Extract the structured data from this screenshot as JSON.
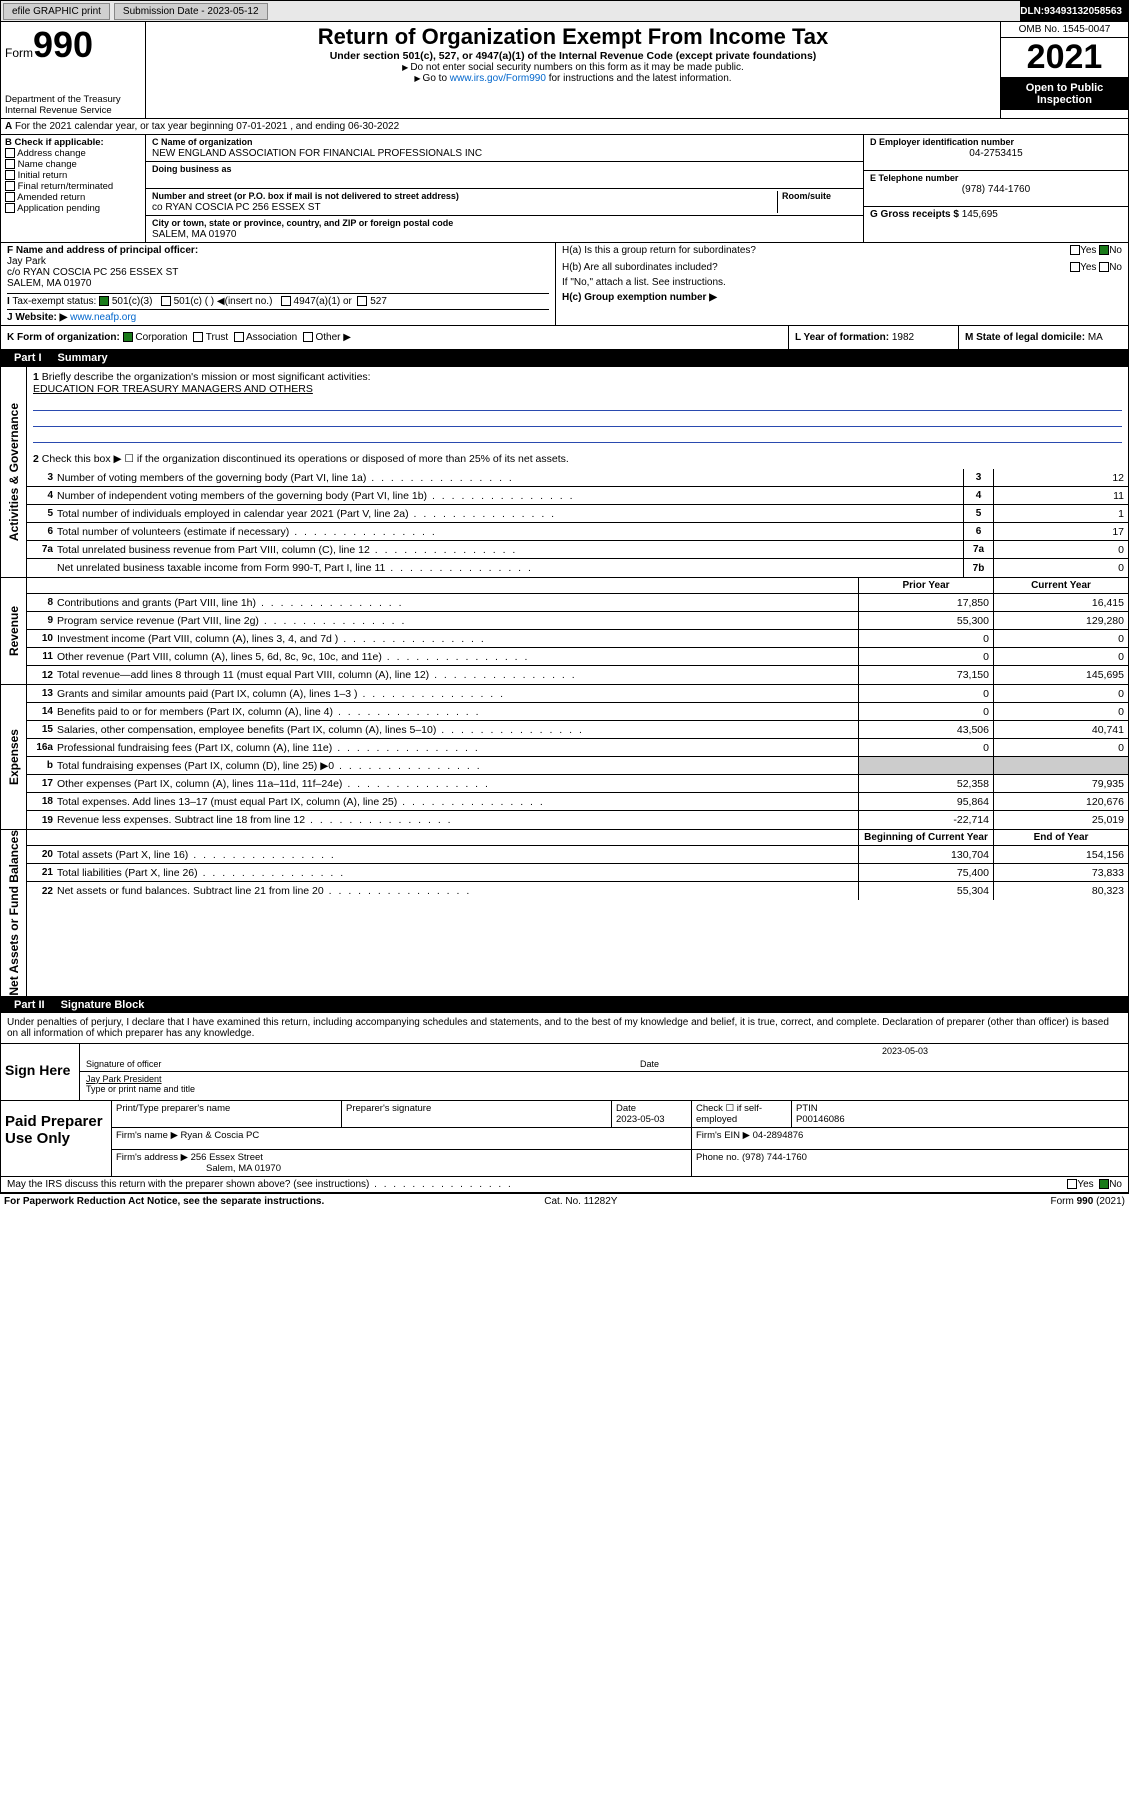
{
  "topbar": {
    "efile": "efile GRAPHIC print",
    "subdate_lbl": "Submission Date - ",
    "subdate": "2023-05-12",
    "dln_lbl": "DLN: ",
    "dln": "93493132058563"
  },
  "header": {
    "form_lbl": "Form",
    "form_no": "990",
    "title": "Return of Organization Exempt From Income Tax",
    "subtitle": "Under section 501(c), 527, or 4947(a)(1) of the Internal Revenue Code (except private foundations)",
    "instr1": "Do not enter social security numbers on this form as it may be made public.",
    "instr2_pre": "Go to ",
    "instr2_link": "www.irs.gov/Form990",
    "instr2_post": " for instructions and the latest information.",
    "dept": "Department of the Treasury",
    "irs": "Internal Revenue Service",
    "omb": "OMB No. 1545-0047",
    "year": "2021",
    "open": "Open to Public Inspection"
  },
  "rowA": "For the 2021 calendar year, or tax year beginning 07-01-2021 , and ending 06-30-2022",
  "rowA_lbl": "A",
  "secB": {
    "hdr": "B Check if applicable:",
    "opts": [
      "Address change",
      "Name change",
      "Initial return",
      "Final return/terminated",
      "Amended return",
      "Application pending"
    ]
  },
  "secC": {
    "name_lbl": "C Name of organization",
    "name": "NEW ENGLAND ASSOCIATION FOR FINANCIAL PROFESSIONALS INC",
    "dba_lbl": "Doing business as",
    "dba": "",
    "street_lbl": "Number and street (or P.O. box if mail is not delivered to street address)",
    "room_lbl": "Room/suite",
    "street": "co RYAN COSCIA PC 256 ESSEX ST",
    "city_lbl": "City or town, state or province, country, and ZIP or foreign postal code",
    "city": "SALEM, MA  01970"
  },
  "secD": {
    "lbl": "D Employer identification number",
    "val": "04-2753415"
  },
  "secE": {
    "lbl": "E Telephone number",
    "val": "(978) 744-1760"
  },
  "secG": {
    "lbl": "G Gross receipts $",
    "val": "145,695"
  },
  "secF": {
    "lbl": "F Name and address of principal officer:",
    "name": "Jay Park",
    "addr": "c/o RYAN COSCIA PC 256 ESSEX ST",
    "city": "SALEM, MA  01970"
  },
  "secH": {
    "ha": "H(a)  Is this a group return for subordinates?",
    "ha_yes": "Yes",
    "ha_no": "No",
    "ha_checked": "No",
    "hb": "H(b)  Are all subordinates included?",
    "hb_note": "If \"No,\" attach a list. See instructions.",
    "hc": "H(c)  Group exemption number ▶"
  },
  "rowI": {
    "lbl": "I",
    "txt": "Tax-exempt status:",
    "o1": "501(c)(3)",
    "o2": "501(c) (  ) ◀(insert no.)",
    "o3": "4947(a)(1) or",
    "o4": "527"
  },
  "rowJ": {
    "lbl": "J",
    "txt": "Website: ▶",
    "val": "www.neafp.org"
  },
  "rowK": {
    "lbl": "K Form of organization:",
    "opts": [
      "Corporation",
      "Trust",
      "Association",
      "Other ▶"
    ],
    "checked": "Corporation",
    "L_lbl": "L Year of formation:",
    "L_val": "1982",
    "M_lbl": "M State of legal domicile:",
    "M_val": "MA"
  },
  "part1": {
    "hdr_part": "Part I",
    "hdr_name": "Summary",
    "q1_lbl": "1",
    "q1": "Briefly describe the organization's mission or most significant activities:",
    "q1_val": "EDUCATION FOR TREASURY MANAGERS AND OTHERS",
    "q2_lbl": "2",
    "q2": "Check this box ▶ ☐ if the organization discontinued its operations or disposed of more than 25% of its net assets.",
    "rows_gov": [
      {
        "n": "3",
        "d": "Number of voting members of the governing body (Part VI, line 1a)",
        "b": "3",
        "v": "12"
      },
      {
        "n": "4",
        "d": "Number of independent voting members of the governing body (Part VI, line 1b)",
        "b": "4",
        "v": "11"
      },
      {
        "n": "5",
        "d": "Total number of individuals employed in calendar year 2021 (Part V, line 2a)",
        "b": "5",
        "v": "1"
      },
      {
        "n": "6",
        "d": "Total number of volunteers (estimate if necessary)",
        "b": "6",
        "v": "17"
      },
      {
        "n": "7a",
        "d": "Total unrelated business revenue from Part VIII, column (C), line 12",
        "b": "7a",
        "v": "0"
      },
      {
        "n": "",
        "d": "Net unrelated business taxable income from Form 990-T, Part I, line 11",
        "b": "7b",
        "v": "0"
      }
    ],
    "prior_lbl": "Prior Year",
    "current_lbl": "Current Year",
    "rows_rev": [
      {
        "n": "8",
        "d": "Contributions and grants (Part VIII, line 1h)",
        "p": "17,850",
        "c": "16,415"
      },
      {
        "n": "9",
        "d": "Program service revenue (Part VIII, line 2g)",
        "p": "55,300",
        "c": "129,280"
      },
      {
        "n": "10",
        "d": "Investment income (Part VIII, column (A), lines 3, 4, and 7d )",
        "p": "0",
        "c": "0"
      },
      {
        "n": "11",
        "d": "Other revenue (Part VIII, column (A), lines 5, 6d, 8c, 9c, 10c, and 11e)",
        "p": "0",
        "c": "0"
      },
      {
        "n": "12",
        "d": "Total revenue—add lines 8 through 11 (must equal Part VIII, column (A), line 12)",
        "p": "73,150",
        "c": "145,695"
      }
    ],
    "rows_exp": [
      {
        "n": "13",
        "d": "Grants and similar amounts paid (Part IX, column (A), lines 1–3 )",
        "p": "0",
        "c": "0"
      },
      {
        "n": "14",
        "d": "Benefits paid to or for members (Part IX, column (A), line 4)",
        "p": "0",
        "c": "0"
      },
      {
        "n": "15",
        "d": "Salaries, other compensation, employee benefits (Part IX, column (A), lines 5–10)",
        "p": "43,506",
        "c": "40,741"
      },
      {
        "n": "16a",
        "d": "Professional fundraising fees (Part IX, column (A), line 11e)",
        "p": "0",
        "c": "0"
      },
      {
        "n": "b",
        "d": "Total fundraising expenses (Part IX, column (D), line 25) ▶0",
        "p": "",
        "c": "",
        "shade": true
      },
      {
        "n": "17",
        "d": "Other expenses (Part IX, column (A), lines 11a–11d, 11f–24e)",
        "p": "52,358",
        "c": "79,935"
      },
      {
        "n": "18",
        "d": "Total expenses. Add lines 13–17 (must equal Part IX, column (A), line 25)",
        "p": "95,864",
        "c": "120,676"
      },
      {
        "n": "19",
        "d": "Revenue less expenses. Subtract line 18 from line 12",
        "p": "-22,714",
        "c": "25,019"
      }
    ],
    "beg_lbl": "Beginning of Current Year",
    "end_lbl": "End of Year",
    "rows_net": [
      {
        "n": "20",
        "d": "Total assets (Part X, line 16)",
        "p": "130,704",
        "c": "154,156"
      },
      {
        "n": "21",
        "d": "Total liabilities (Part X, line 26)",
        "p": "75,400",
        "c": "73,833"
      },
      {
        "n": "22",
        "d": "Net assets or fund balances. Subtract line 21 from line 20",
        "p": "55,304",
        "c": "80,323"
      }
    ],
    "vtab_gov": "Activities & Governance",
    "vtab_rev": "Revenue",
    "vtab_exp": "Expenses",
    "vtab_net": "Net Assets or Fund Balances"
  },
  "part2": {
    "hdr_part": "Part II",
    "hdr_name": "Signature Block",
    "decl": "Under penalties of perjury, I declare that I have examined this return, including accompanying schedules and statements, and to the best of my knowledge and belief, it is true, correct, and complete. Declaration of preparer (other than officer) is based on all information of which preparer has any knowledge.",
    "sign_lbl": "Sign Here",
    "sig_officer": "Signature of officer",
    "sig_date": "Date",
    "sig_date_val": "2023-05-03",
    "sig_name": "Jay Park President",
    "sig_name_lbl": "Type or print name and title",
    "prep_lbl": "Paid Preparer Use Only",
    "prep_cols": {
      "c1": "Print/Type preparer's name",
      "c2": "Preparer's signature",
      "c3": "Date",
      "c4": "Check ☐ if self-employed",
      "c5": "PTIN"
    },
    "prep_date": "2023-05-03",
    "prep_ptin": "P00146086",
    "firm_lbl": "Firm's name ▶",
    "firm": "Ryan & Coscia PC",
    "firm_ein_lbl": "Firm's EIN ▶",
    "firm_ein": "04-2894876",
    "firm_addr_lbl": "Firm's address ▶",
    "firm_addr": "256 Essex Street",
    "firm_city": "Salem, MA  01970",
    "firm_phone_lbl": "Phone no.",
    "firm_phone": "(978) 744-1760",
    "may_discuss": "May the IRS discuss this return with the preparer shown above? (see instructions)",
    "may_yes": "Yes",
    "may_no": "No"
  },
  "footer": {
    "pra": "For Paperwork Reduction Act Notice, see the separate instructions.",
    "cat": "Cat. No. 11282Y",
    "form": "Form 990 (2021)"
  },
  "colors": {
    "link": "#0066cc",
    "black": "#000000",
    "check_green": "#1a7a1a",
    "blueline": "#2a4aaf"
  }
}
